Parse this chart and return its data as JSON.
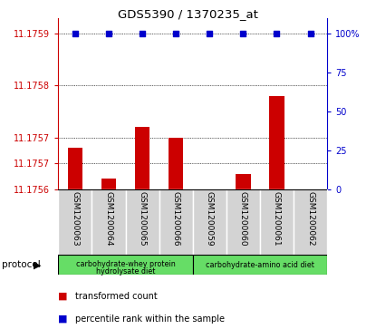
{
  "title": "GDS5390 / 1370235_at",
  "samples": [
    "GSM1200063",
    "GSM1200064",
    "GSM1200065",
    "GSM1200066",
    "GSM1200059",
    "GSM1200060",
    "GSM1200061",
    "GSM1200062"
  ],
  "red_values": [
    11.17568,
    11.17562,
    11.17572,
    11.1757,
    11.17556,
    11.17563,
    11.17578,
    11.17557
  ],
  "blue_values": [
    100,
    100,
    100,
    100,
    100,
    100,
    100,
    100
  ],
  "y_min": 11.1756,
  "y_max": 11.17593,
  "y_ticks": [
    11.1756,
    11.17565,
    11.1757,
    11.1758,
    11.1759
  ],
  "y_tick_labels": [
    "11.1756",
    "11.1757",
    "11.1757",
    "11.1758",
    "11.1759"
  ],
  "right_y_ticks": [
    0,
    25,
    50,
    75,
    100
  ],
  "right_y_labels": [
    "0",
    "25",
    "50",
    "75",
    "100%"
  ],
  "bar_color": "#cc0000",
  "dot_color": "#0000cc",
  "gray_color": "#d3d3d3",
  "green_color": "#66dd66",
  "protocol_groups": [
    {
      "label": "carbohydrate-whey protein\nhydrolysate diet",
      "start": 0,
      "end": 4
    },
    {
      "label": "carbohydrate-amino acid diet",
      "start": 4,
      "end": 8
    }
  ]
}
